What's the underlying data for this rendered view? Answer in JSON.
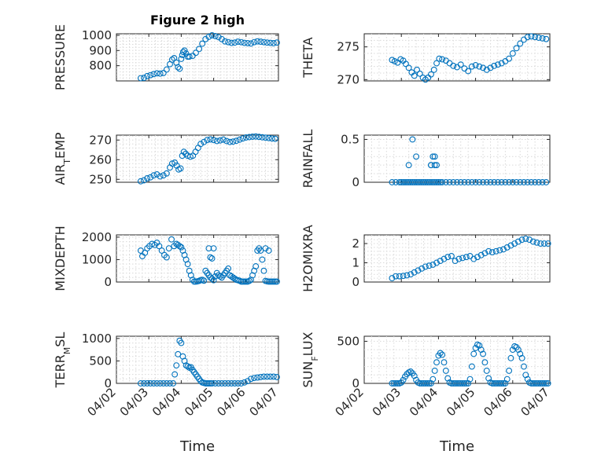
{
  "figure": {
    "title": "Figure 2 high",
    "marker_color": "#0072BD"
  },
  "chart_data": [
    {
      "type": "scatter",
      "title": "Figure 2 high",
      "ylabel": "PRESSURE",
      "ylim": [
        700,
        1010
      ],
      "yticks": [
        800,
        900,
        1000
      ],
      "yticklabels": [
        "800",
        "900",
        "1000"
      ],
      "xlim": [
        0,
        5
      ],
      "xticks": [
        0,
        1,
        2,
        3,
        4,
        5
      ],
      "xticklabels": [
        "",
        "",
        "",
        "",
        "",
        ""
      ],
      "xlabel": "",
      "x": [
        0.75,
        0.85,
        0.95,
        1.05,
        1.15,
        1.25,
        1.35,
        1.45,
        1.55,
        1.65,
        1.72,
        1.78,
        1.85,
        1.9,
        1.95,
        2.0,
        2.03,
        2.06,
        2.1,
        2.15,
        2.2,
        2.25,
        2.35,
        2.45,
        2.55,
        2.65,
        2.75,
        2.85,
        2.95,
        3.05,
        3.15,
        3.25,
        3.35,
        3.45,
        3.55,
        3.65,
        3.75,
        3.85,
        3.95,
        4.05,
        4.15,
        4.25,
        4.35,
        4.45,
        4.55,
        4.65,
        4.75,
        4.85,
        4.95
      ],
      "y": [
        718,
        720,
        732,
        738,
        745,
        750,
        748,
        752,
        775,
        810,
        840,
        850,
        820,
        790,
        780,
        845,
        870,
        890,
        900,
        880,
        860,
        860,
        865,
        885,
        910,
        945,
        975,
        990,
        1000,
        995,
        988,
        975,
        960,
        955,
        950,
        952,
        958,
        955,
        950,
        948,
        946,
        955,
        960,
        958,
        955,
        952,
        950,
        948,
        952
      ]
    },
    {
      "type": "scatter",
      "ylabel": "THETA",
      "ylim": [
        269.8,
        277
      ],
      "yticks": [
        270,
        275
      ],
      "yticklabels": [
        "270",
        "275"
      ],
      "xlim": [
        0,
        5
      ],
      "xticks": [
        0,
        1,
        2,
        3,
        4,
        5
      ],
      "xticklabels": [
        "",
        "",
        "",
        "",
        "",
        ""
      ],
      "xlabel": "",
      "x": [
        0.75,
        0.82,
        0.9,
        0.98,
        1.05,
        1.12,
        1.2,
        1.28,
        1.35,
        1.42,
        1.5,
        1.58,
        1.65,
        1.72,
        1.8,
        1.88,
        1.95,
        2.02,
        2.1,
        2.2,
        2.3,
        2.4,
        2.5,
        2.6,
        2.7,
        2.8,
        2.9,
        3.0,
        3.1,
        3.2,
        3.3,
        3.4,
        3.5,
        3.6,
        3.7,
        3.8,
        3.9,
        4.0,
        4.1,
        4.2,
        4.3,
        4.4,
        4.5,
        4.6,
        4.7,
        4.8,
        4.9
      ],
      "y": [
        273.0,
        272.8,
        272.6,
        273.1,
        272.9,
        272.4,
        271.8,
        271.1,
        270.6,
        271.5,
        270.9,
        270.3,
        270.0,
        270.3,
        270.8,
        271.5,
        272.5,
        273.2,
        273.1,
        272.9,
        272.5,
        272.1,
        271.9,
        272.3,
        271.7,
        271.3,
        272.0,
        272.2,
        272.0,
        271.8,
        271.5,
        271.8,
        272.1,
        272.3,
        272.5,
        272.8,
        273.2,
        274.0,
        274.8,
        275.5,
        276.1,
        276.5,
        276.6,
        276.5,
        276.4,
        276.3,
        276.2
      ]
    },
    {
      "type": "scatter",
      "ylabel": "AIR_TEMP",
      "ylim": [
        248.5,
        272.5
      ],
      "yticks": [
        250,
        260,
        270
      ],
      "yticklabels": [
        "250",
        "260",
        "270"
      ],
      "xlim": [
        0,
        5
      ],
      "xticks": [
        0,
        1,
        2,
        3,
        4,
        5
      ],
      "xticklabels": [
        "",
        "",
        "",
        "",
        "",
        ""
      ],
      "xlabel": "",
      "x": [
        0.75,
        0.85,
        0.95,
        1.05,
        1.15,
        1.25,
        1.35,
        1.45,
        1.55,
        1.65,
        1.72,
        1.8,
        1.86,
        1.92,
        1.98,
        2.03,
        2.08,
        2.14,
        2.2,
        2.28,
        2.36,
        2.44,
        2.52,
        2.6,
        2.7,
        2.8,
        2.9,
        3.0,
        3.1,
        3.2,
        3.3,
        3.4,
        3.5,
        3.6,
        3.7,
        3.8,
        3.9,
        4.0,
        4.1,
        4.2,
        4.3,
        4.4,
        4.5,
        4.6,
        4.7,
        4.8,
        4.9
      ],
      "y": [
        249,
        249.5,
        250.5,
        251,
        252,
        252.5,
        251.5,
        252,
        253,
        256,
        258,
        258.5,
        257,
        255,
        255.5,
        262,
        264,
        263,
        262,
        261.5,
        262,
        264,
        266,
        268,
        269,
        270,
        270.3,
        270,
        269.5,
        269.8,
        270.2,
        269.5,
        269,
        269.2,
        269.6,
        270.2,
        270.8,
        271.3,
        271.5,
        271.7,
        271.8,
        271.6,
        271.4,
        271.2,
        271.0,
        270.8,
        270.6
      ]
    },
    {
      "type": "scatter",
      "ylabel": "RAINFALL",
      "ylim": [
        0,
        0.55
      ],
      "yticks": [
        0,
        0.5
      ],
      "yticklabels": [
        "0",
        "0.5"
      ],
      "xlim": [
        0,
        5
      ],
      "xticks": [
        0,
        1,
        2,
        3,
        4,
        5
      ],
      "xticklabels": [
        "",
        "",
        "",
        "",
        "",
        ""
      ],
      "xlabel": "",
      "x": [
        0.75,
        0.85,
        0.95,
        1.0,
        1.05,
        1.1,
        1.15,
        1.2,
        1.25,
        1.3,
        1.35,
        1.4,
        1.45,
        1.5,
        1.55,
        1.6,
        1.65,
        1.7,
        1.75,
        1.8,
        1.85,
        1.9,
        1.95,
        2.0,
        2.05,
        2.1,
        2.2,
        2.3,
        2.4,
        2.5,
        2.6,
        2.7,
        2.8,
        2.9,
        3.0,
        3.1,
        3.2,
        3.3,
        3.4,
        3.5,
        3.6,
        3.7,
        3.8,
        3.9,
        4.0,
        4.1,
        4.2,
        4.3,
        4.4,
        4.5,
        4.6,
        4.7,
        4.8,
        4.9,
        1.2,
        1.3,
        1.4,
        1.8,
        1.85,
        1.9,
        1.95,
        1.8,
        1.9
      ],
      "y": [
        0,
        0,
        0,
        0,
        0,
        0,
        0,
        0,
        0,
        0,
        0,
        0,
        0,
        0,
        0,
        0,
        0,
        0,
        0,
        0,
        0,
        0,
        0,
        0,
        0,
        0,
        0,
        0,
        0,
        0,
        0,
        0,
        0,
        0,
        0,
        0,
        0,
        0,
        0,
        0,
        0,
        0,
        0,
        0,
        0,
        0,
        0,
        0,
        0,
        0,
        0,
        0,
        0,
        0,
        0.2,
        0.5,
        0.3,
        0.2,
        0.3,
        0.3,
        0.2,
        0.2,
        0.2
      ]
    },
    {
      "type": "scatter",
      "ylabel": "MIXDEPTH",
      "ylim": [
        0,
        2100
      ],
      "yticks": [
        0,
        1000,
        2000
      ],
      "yticklabels": [
        "0",
        "1000",
        "2000"
      ],
      "xlim": [
        0,
        5
      ],
      "xticks": [
        0,
        1,
        2,
        3,
        4,
        5
      ],
      "xticklabels": [
        "",
        "",
        "",
        "",
        "",
        ""
      ],
      "xlabel": "",
      "x": [
        0.75,
        0.8,
        0.88,
        0.95,
        1.02,
        1.1,
        1.18,
        1.25,
        1.32,
        1.4,
        1.48,
        1.55,
        1.62,
        1.7,
        1.78,
        1.85,
        1.9,
        1.95,
        2.0,
        2.05,
        2.1,
        2.15,
        2.2,
        2.25,
        2.3,
        2.35,
        2.4,
        2.45,
        2.5,
        2.55,
        2.6,
        2.65,
        2.7,
        2.75,
        2.8,
        2.85,
        2.9,
        2.95,
        3.0,
        3.05,
        3.1,
        3.15,
        3.2,
        3.25,
        3.3,
        3.35,
        3.4,
        3.45,
        3.5,
        3.55,
        3.6,
        3.65,
        3.7,
        3.75,
        3.8,
        3.85,
        3.9,
        3.95,
        4.0,
        4.05,
        4.1,
        4.15,
        4.2,
        4.25,
        4.3,
        4.35,
        4.4,
        4.45,
        4.5,
        4.55,
        4.6,
        4.65,
        4.7,
        4.75,
        4.8,
        4.85,
        4.9,
        4.95,
        2.85,
        2.9,
        2.95,
        3.0,
        4.6,
        4.7
      ],
      "y": [
        1400,
        1150,
        1300,
        1500,
        1600,
        1700,
        1650,
        1750,
        1600,
        1400,
        1200,
        1100,
        1500,
        1900,
        1600,
        1700,
        1650,
        1600,
        1550,
        1400,
        1200,
        1000,
        800,
        500,
        300,
        100,
        20,
        20,
        30,
        50,
        80,
        100,
        60,
        500,
        400,
        300,
        200,
        150,
        80,
        250,
        400,
        300,
        250,
        200,
        300,
        400,
        500,
        600,
        300,
        250,
        200,
        150,
        100,
        80,
        60,
        20,
        20,
        20,
        20,
        20,
        50,
        100,
        300,
        500,
        700,
        1400,
        1500,
        1400,
        1000,
        500,
        50,
        30,
        20,
        20,
        20,
        20,
        20,
        20,
        1500,
        1100,
        1050,
        1500,
        1500,
        1400
      ]
    },
    {
      "type": "scatter",
      "ylabel": "H2OMIXRA",
      "ylim": [
        0,
        2.45
      ],
      "yticks": [
        0,
        1,
        2
      ],
      "yticklabels": [
        "0",
        "1",
        "2"
      ],
      "xlim": [
        0,
        5
      ],
      "xticks": [
        0,
        1,
        2,
        3,
        4,
        5
      ],
      "xticklabels": [
        "",
        "",
        "",
        "",
        "",
        ""
      ],
      "xlabel": "",
      "x": [
        0.75,
        0.85,
        0.95,
        1.05,
        1.15,
        1.25,
        1.35,
        1.45,
        1.55,
        1.65,
        1.75,
        1.85,
        1.95,
        2.05,
        2.15,
        2.25,
        2.35,
        2.45,
        2.55,
        2.65,
        2.75,
        2.85,
        2.95,
        3.05,
        3.15,
        3.25,
        3.35,
        3.45,
        3.55,
        3.65,
        3.75,
        3.85,
        3.95,
        4.05,
        4.15,
        4.25,
        4.35,
        4.45,
        4.55,
        4.65,
        4.75,
        4.85,
        4.95
      ],
      "y": [
        0.2,
        0.3,
        0.3,
        0.32,
        0.35,
        0.4,
        0.5,
        0.6,
        0.7,
        0.8,
        0.85,
        0.9,
        1.0,
        1.1,
        1.2,
        1.3,
        1.35,
        1.1,
        1.2,
        1.25,
        1.3,
        1.35,
        1.2,
        1.3,
        1.4,
        1.5,
        1.6,
        1.55,
        1.6,
        1.65,
        1.7,
        1.8,
        1.9,
        2.0,
        2.1,
        2.2,
        2.25,
        2.2,
        2.1,
        2.05,
        2.0,
        2.0,
        2.0
      ]
    },
    {
      "type": "scatter",
      "ylabel": "TERR_MSL",
      "ylim": [
        0,
        1050
      ],
      "yticks": [
        0,
        500,
        1000
      ],
      "yticklabels": [
        "0",
        "500",
        "1000"
      ],
      "xlim": [
        0,
        5
      ],
      "xticks": [
        0,
        1,
        2,
        3,
        4,
        5
      ],
      "xticklabels": [
        "04/02",
        "04/03",
        "04/04",
        "04/05",
        "04/06",
        "04/07"
      ],
      "xlabel": "Time",
      "x": [
        0.75,
        0.85,
        0.95,
        1.05,
        1.15,
        1.25,
        1.35,
        1.45,
        1.55,
        1.65,
        1.75,
        1.8,
        1.85,
        1.9,
        1.95,
        2.0,
        2.05,
        2.1,
        2.15,
        2.2,
        2.25,
        2.3,
        2.35,
        2.4,
        2.45,
        2.5,
        2.55,
        2.6,
        2.65,
        2.7,
        2.75,
        2.8,
        2.85,
        2.9,
        2.95,
        3.05,
        3.15,
        3.25,
        3.35,
        3.45,
        3.55,
        3.65,
        3.75,
        3.85,
        3.95,
        4.05,
        4.15,
        4.25,
        4.35,
        4.45,
        4.55,
        4.65,
        4.75,
        4.85,
        4.95
      ],
      "y": [
        0,
        0,
        0,
        0,
        0,
        0,
        0,
        0,
        0,
        0,
        0,
        200,
        400,
        650,
        950,
        900,
        600,
        500,
        400,
        380,
        350,
        360,
        300,
        250,
        200,
        150,
        100,
        50,
        20,
        10,
        0,
        0,
        0,
        0,
        0,
        0,
        0,
        0,
        0,
        0,
        0,
        0,
        0,
        0,
        20,
        50,
        100,
        120,
        130,
        140,
        150,
        150,
        150,
        150,
        140
      ]
    },
    {
      "type": "scatter",
      "ylabel": "SUN_FLUX",
      "ylim": [
        0,
        560
      ],
      "yticks": [
        0,
        500
      ],
      "yticklabels": [
        "0",
        "500"
      ],
      "xlim": [
        0,
        5
      ],
      "xticks": [
        0,
        1,
        2,
        3,
        4,
        5
      ],
      "xticklabels": [
        "04/02",
        "04/03",
        "04/04",
        "04/05",
        "04/06",
        "04/07"
      ],
      "xlabel": "Time",
      "x": [
        0.75,
        0.8,
        0.85,
        0.9,
        0.95,
        1.0,
        1.05,
        1.1,
        1.15,
        1.2,
        1.25,
        1.3,
        1.35,
        1.4,
        1.45,
        1.5,
        1.55,
        1.6,
        1.65,
        1.7,
        1.75,
        1.8,
        1.85,
        1.9,
        1.95,
        2.0,
        2.05,
        2.1,
        2.15,
        2.2,
        2.25,
        2.3,
        2.35,
        2.4,
        2.45,
        2.5,
        2.55,
        2.6,
        2.65,
        2.7,
        2.75,
        2.8,
        2.85,
        2.9,
        2.95,
        3.0,
        3.05,
        3.1,
        3.15,
        3.2,
        3.25,
        3.3,
        3.35,
        3.4,
        3.45,
        3.5,
        3.55,
        3.6,
        3.65,
        3.7,
        3.75,
        3.8,
        3.85,
        3.9,
        3.95,
        4.0,
        4.05,
        4.1,
        4.15,
        4.2,
        4.25,
        4.3,
        4.35,
        4.4,
        4.45,
        4.5,
        4.55,
        4.6,
        4.65,
        4.7,
        4.75,
        4.8,
        4.85,
        4.9,
        4.95
      ],
      "y": [
        0,
        0,
        0,
        0,
        0,
        10,
        40,
        80,
        110,
        130,
        140,
        120,
        90,
        40,
        10,
        0,
        0,
        0,
        0,
        0,
        0,
        0,
        50,
        150,
        250,
        330,
        360,
        340,
        250,
        150,
        60,
        10,
        0,
        0,
        0,
        0,
        0,
        0,
        0,
        0,
        0,
        0,
        50,
        200,
        350,
        420,
        460,
        450,
        400,
        350,
        250,
        150,
        60,
        10,
        0,
        0,
        0,
        0,
        0,
        0,
        0,
        0,
        50,
        150,
        300,
        400,
        440,
        430,
        400,
        350,
        300,
        200,
        100,
        50,
        10,
        0,
        0,
        0,
        0,
        0,
        0,
        0,
        0,
        0,
        0
      ]
    }
  ]
}
